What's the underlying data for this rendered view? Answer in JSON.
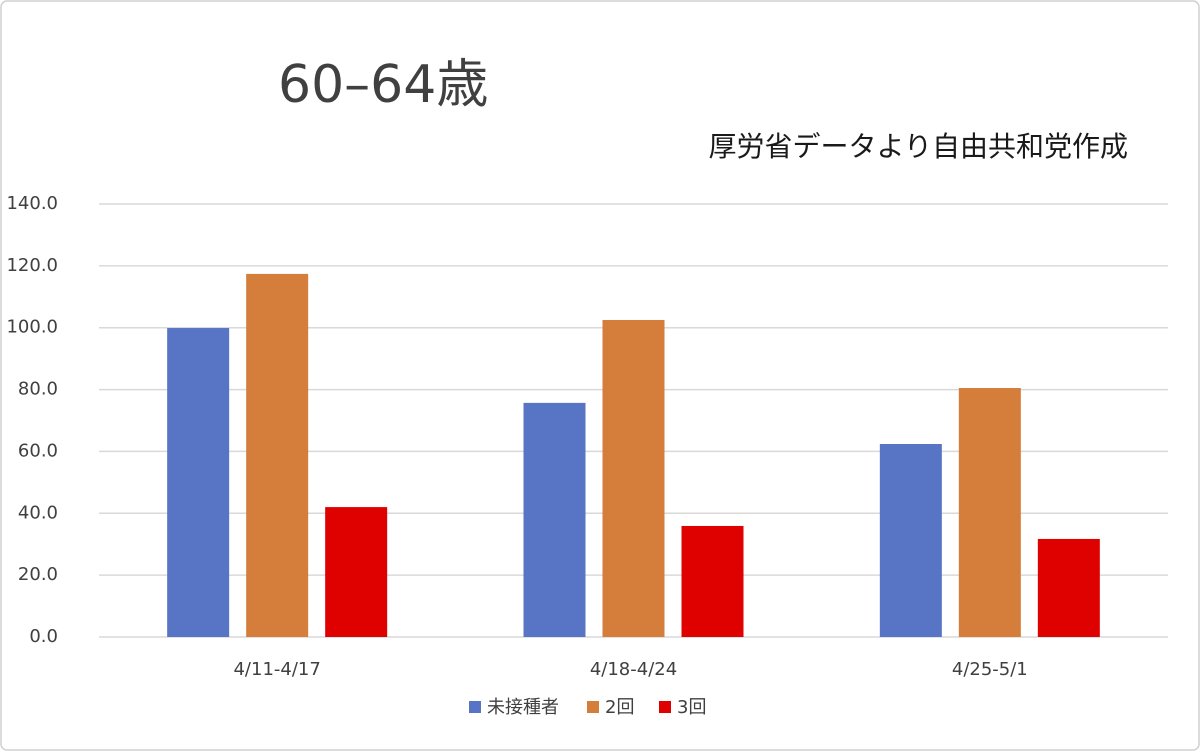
{
  "chart_data": {
    "type": "bar",
    "title": "60–64歳",
    "subtitle": "厚労省データより自由共和党作成",
    "categories": [
      "4/11-4/17",
      "4/18-4/24",
      "4/25-5/1"
    ],
    "series": [
      {
        "name": "未接種者",
        "color": "#5874c4",
        "values": [
          99.9,
          75.7,
          62.4
        ]
      },
      {
        "name": "2回",
        "color": "#d57d3b",
        "values": [
          117.4,
          102.5,
          80.5
        ]
      },
      {
        "name": "3回",
        "color": "#df0000",
        "values": [
          42.0,
          35.9,
          31.7
        ]
      }
    ],
    "ylim": [
      0,
      140
    ],
    "yticks": [
      {
        "value": 0,
        "label": "0.0"
      },
      {
        "value": 20,
        "label": "20.0"
      },
      {
        "value": 40,
        "label": "40.0"
      },
      {
        "value": 60,
        "label": "60.0"
      },
      {
        "value": 80,
        "label": "80.0"
      },
      {
        "value": 100,
        "label": "100.0"
      },
      {
        "value": 120,
        "label": "120.0"
      },
      {
        "value": 140,
        "label": "140.0"
      }
    ],
    "grid": true,
    "legend": "bottom"
  }
}
